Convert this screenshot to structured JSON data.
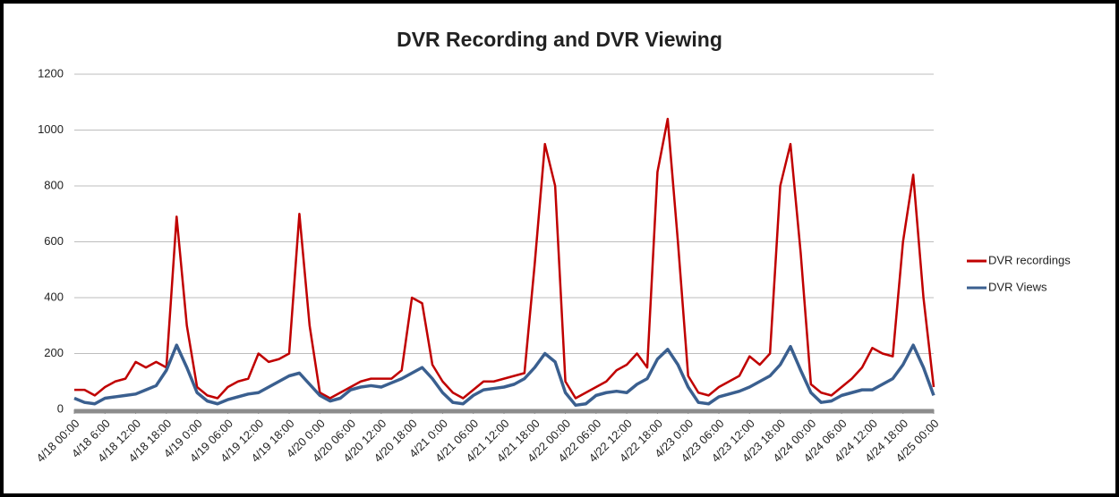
{
  "chart_data": {
    "type": "line",
    "title": "DVR Recording and DVR Viewing",
    "categories": [
      "4/18 00:00",
      null,
      null,
      "4/18  6:00",
      null,
      null,
      "4/18 12:00",
      null,
      null,
      "4/18 18:00",
      null,
      null,
      "4/19 0:00",
      null,
      null,
      "4/19 06:00",
      null,
      null,
      "4/19 12:00",
      null,
      null,
      "4/19 18:00",
      null,
      null,
      "4/20 0:00",
      null,
      null,
      "4/20 06:00",
      null,
      null,
      "4/20 12:00",
      null,
      null,
      "4/20 18:00",
      null,
      null,
      "4/21 0:00",
      null,
      null,
      "4/21 06:00",
      null,
      null,
      "4/21 12:00",
      null,
      null,
      "4/21 18:00",
      null,
      null,
      "4/22 00:00",
      null,
      null,
      "4/22 06:00",
      null,
      null,
      "4/22 12:00",
      null,
      null,
      "4/22 18:00",
      null,
      null,
      "4/23 0:00",
      null,
      null,
      "4/23 06:00",
      null,
      null,
      "4/23 12:00",
      null,
      null,
      "4/23 18:00",
      null,
      null,
      "4/24 00:00",
      null,
      null,
      "4/24 06:00",
      null,
      null,
      "4/24 12:00",
      null,
      null,
      "4/24 18:00",
      null,
      null,
      "4/25 00:00"
    ],
    "series": [
      {
        "name": "DVR recordings",
        "color": "#c00000",
        "values": [
          70,
          70,
          50,
          80,
          100,
          110,
          170,
          150,
          170,
          150,
          690,
          300,
          80,
          50,
          40,
          80,
          100,
          110,
          200,
          170,
          180,
          200,
          700,
          300,
          60,
          40,
          60,
          80,
          100,
          110,
          110,
          110,
          140,
          400,
          380,
          160,
          100,
          60,
          40,
          70,
          100,
          100,
          110,
          120,
          130,
          520,
          950,
          800,
          100,
          40,
          60,
          80,
          100,
          140,
          160,
          200,
          150,
          850,
          1040,
          600,
          120,
          60,
          50,
          80,
          100,
          120,
          190,
          160,
          200,
          800,
          950,
          560,
          90,
          60,
          50,
          80,
          110,
          150,
          220,
          200,
          190,
          600,
          840,
          400,
          80
        ]
      },
      {
        "name": "DVR Views",
        "color": "#3a5f8f",
        "values": [
          40,
          25,
          20,
          40,
          45,
          50,
          55,
          70,
          85,
          140,
          230,
          150,
          60,
          30,
          20,
          35,
          45,
          55,
          60,
          80,
          100,
          120,
          130,
          90,
          50,
          30,
          40,
          70,
          80,
          85,
          80,
          95,
          110,
          130,
          150,
          110,
          60,
          25,
          20,
          50,
          70,
          75,
          80,
          90,
          110,
          150,
          200,
          170,
          60,
          15,
          20,
          50,
          60,
          65,
          60,
          90,
          110,
          180,
          215,
          160,
          80,
          25,
          20,
          45,
          55,
          65,
          80,
          100,
          120,
          160,
          225,
          140,
          60,
          25,
          30,
          50,
          60,
          70,
          70,
          90,
          110,
          160,
          230,
          150,
          50
        ]
      }
    ],
    "ylim": [
      0,
      1200
    ],
    "yticks": [
      0,
      200,
      400,
      600,
      800,
      1000,
      1200
    ],
    "grid": true,
    "legend": "right"
  }
}
